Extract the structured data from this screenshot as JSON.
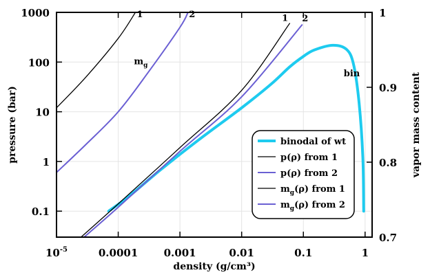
{
  "chart_data": {
    "type": "line",
    "title": "",
    "xlabel": "density (g/cm³)",
    "ylabel_left": "pressure (bar)",
    "ylabel_right": "vapor mass content",
    "x_scale": "log",
    "y_left_scale": "log",
    "xlim": [
      1e-05,
      1.3
    ],
    "ylim_left": [
      0.03,
      1000
    ],
    "ylim_right": [
      0.7,
      1.0
    ],
    "grid": true,
    "legend_position": "center-right",
    "x_ticks": [
      {
        "value": 1e-05,
        "base": "10",
        "exp": "-5"
      },
      {
        "value": 0.0001,
        "label": "0.0001"
      },
      {
        "value": 0.001,
        "label": "0.001"
      },
      {
        "value": 0.01,
        "label": "0.01"
      },
      {
        "value": 0.1,
        "label": "0.1"
      },
      {
        "value": 1,
        "label": "1"
      }
    ],
    "y_left_ticks": [
      {
        "value": 0.1,
        "label": "0.1"
      },
      {
        "value": 1,
        "label": "1"
      },
      {
        "value": 10,
        "label": "10"
      },
      {
        "value": 100,
        "label": "100"
      },
      {
        "value": 1000,
        "label": "1000"
      }
    ],
    "y_right_ticks": [
      {
        "value": 0.7,
        "label": "0.7"
      },
      {
        "value": 0.8,
        "label": "0.8"
      },
      {
        "value": 0.9,
        "label": "0.9"
      },
      {
        "value": 1.0,
        "label": "1"
      }
    ],
    "series": [
      {
        "legend": "binodal of wt",
        "axis": "left",
        "color": "#1ecbef",
        "width": 4,
        "points": [
          [
            7e-05,
            0.1
          ],
          [
            0.00015,
            0.2
          ],
          [
            0.0005,
            0.7
          ],
          [
            0.002,
            2.7
          ],
          [
            0.01,
            12
          ],
          [
            0.03,
            36
          ],
          [
            0.06,
            80
          ],
          [
            0.1,
            130
          ],
          [
            0.15,
            175
          ],
          [
            0.3,
            218
          ],
          [
            0.5,
            180
          ],
          [
            0.65,
            90
          ],
          [
            0.8,
            15
          ],
          [
            0.92,
            1.2
          ],
          [
            0.95,
            0.1
          ]
        ]
      },
      {
        "legend": "p(ρ) from 1",
        "axis": "left",
        "color": "#000000",
        "width": 1.3,
        "points": [
          [
            2.5e-05,
            0.03
          ],
          [
            0.0001,
            0.14
          ],
          [
            0.001,
            1.9
          ],
          [
            0.01,
            27
          ],
          [
            0.06,
            600
          ]
        ]
      },
      {
        "legend": "p(ρ) from 2",
        "axis": "left",
        "color": "#6a5fd3",
        "width": 2,
        "points": [
          [
            2.8e-05,
            0.03
          ],
          [
            0.0001,
            0.12
          ],
          [
            0.001,
            1.6
          ],
          [
            0.01,
            20
          ],
          [
            0.095,
            560
          ]
        ]
      },
      {
        "legend": "mg(ρ) from 1",
        "axis": "left",
        "color": "#000000",
        "width": 1.3,
        "points": [
          [
            1e-05,
            12
          ],
          [
            3e-05,
            50
          ],
          [
            0.0001,
            300
          ],
          [
            0.00019,
            1000
          ]
        ]
      },
      {
        "legend": "mg(ρ) from 2",
        "axis": "left",
        "color": "#6a5fd3",
        "width": 2,
        "points": [
          [
            1e-05,
            0.6
          ],
          [
            3e-05,
            2.2
          ],
          [
            0.0001,
            10
          ],
          [
            0.0003,
            60
          ],
          [
            0.001,
            500
          ],
          [
            0.00135,
            1000
          ]
        ]
      }
    ],
    "annotations": [
      {
        "text": "1",
        "x": 0.0002,
        "y": 800
      },
      {
        "text": "2",
        "x": 0.0014,
        "y": 800
      },
      {
        "text": "1",
        "x": 0.045,
        "y": 670
      },
      {
        "text": "2",
        "x": 0.095,
        "y": 660
      },
      {
        "text": "bin",
        "x": 0.45,
        "y": 52
      },
      {
        "text": "m",
        "sub": "g",
        "x": 0.00018,
        "y": 90
      }
    ],
    "legend": {
      "entries": [
        {
          "text": "binodal of wt",
          "color": "#1ecbef",
          "width": 4
        },
        {
          "text": "p(ρ) from 1",
          "color": "#000000",
          "width": 1.3
        },
        {
          "text": "p(ρ) from 2",
          "color": "#6a5fd3",
          "width": 2
        },
        {
          "text": "m",
          "sub": "g",
          "rest": "(ρ) from 1",
          "color": "#000000",
          "width": 1.3
        },
        {
          "text": "m",
          "sub": "g",
          "rest": "(ρ) from 2",
          "color": "#6a5fd3",
          "width": 2
        }
      ]
    }
  }
}
